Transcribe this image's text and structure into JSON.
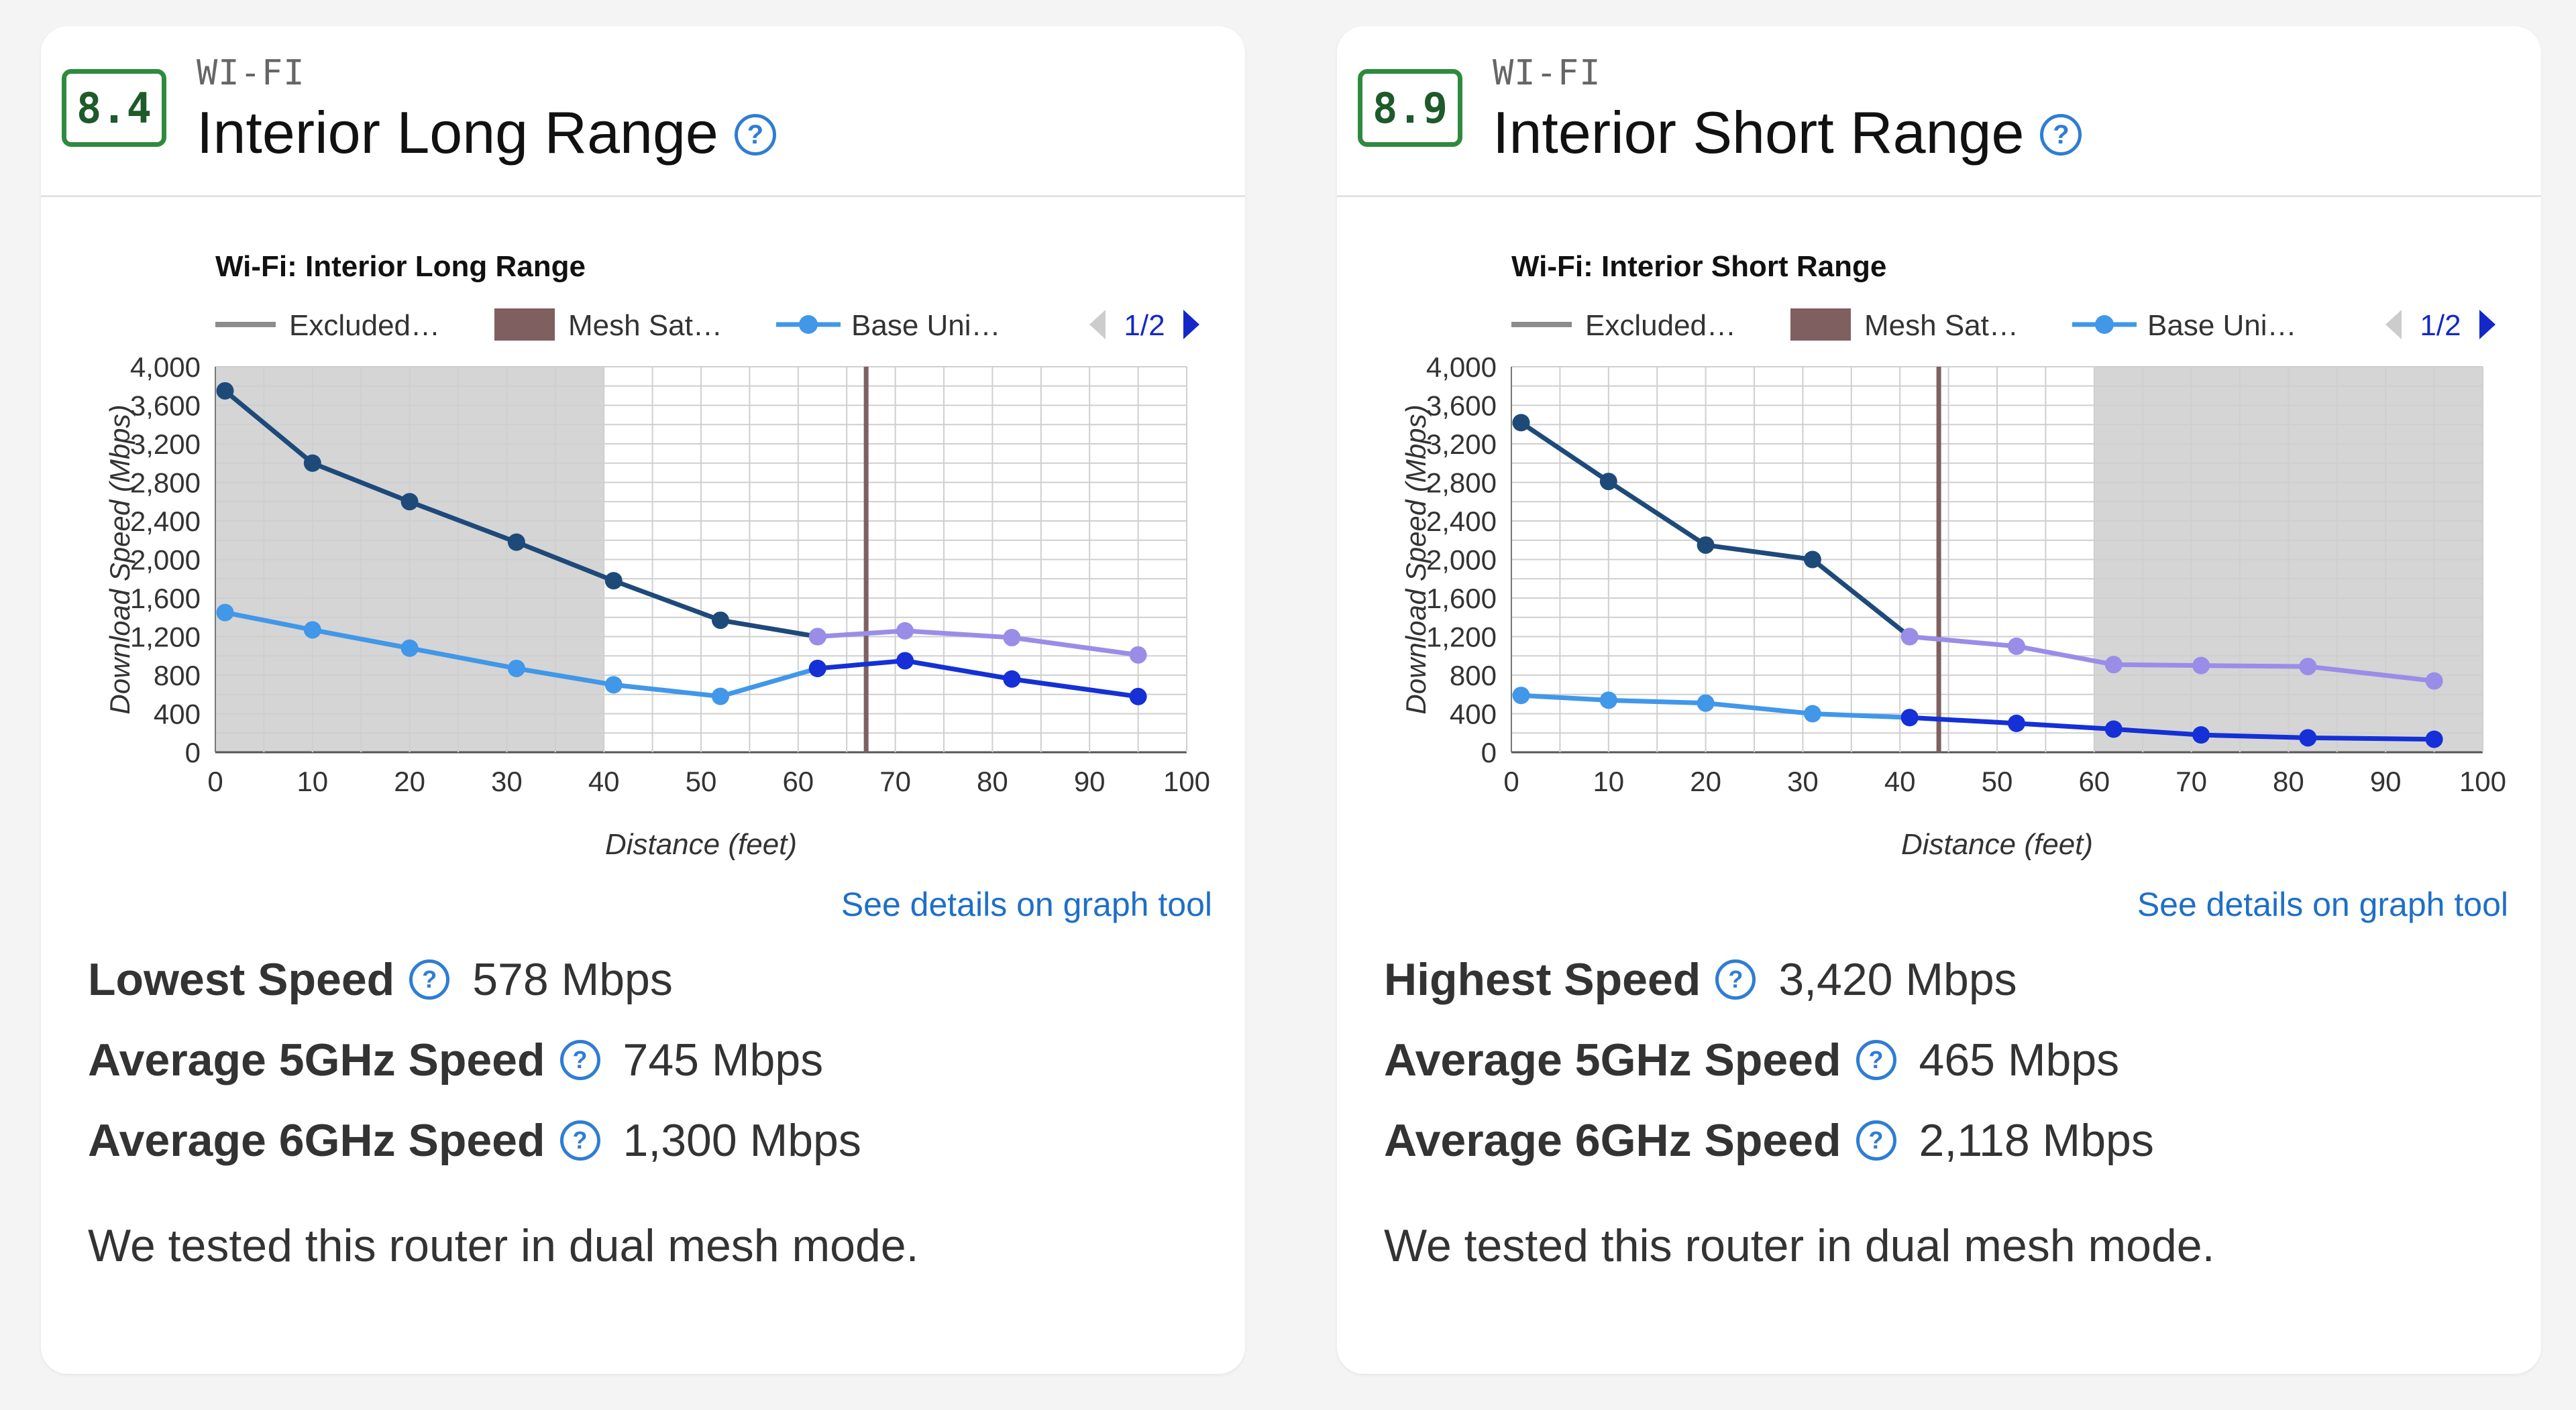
{
  "cards": [
    {
      "score": "8.4",
      "category": "WI-FI",
      "title": "Interior Long Range",
      "details_link": "See details on graph tool",
      "stats": [
        {
          "label": "Lowest Speed",
          "value": "578 Mbps"
        },
        {
          "label": "Average 5GHz Speed",
          "value": "745 Mbps"
        },
        {
          "label": "Average 6GHz Speed",
          "value": "1,300 Mbps"
        }
      ],
      "note": "We tested this router in dual mesh mode."
    },
    {
      "score": "8.9",
      "category": "WI-FI",
      "title": "Interior Short Range",
      "details_link": "See details on graph tool",
      "stats": [
        {
          "label": "Highest Speed",
          "value": "3,420 Mbps"
        },
        {
          "label": "Average 5GHz Speed",
          "value": "465 Mbps"
        },
        {
          "label": "Average 6GHz Speed",
          "value": "2,118 Mbps"
        }
      ],
      "note": "We tested this router in dual mesh mode."
    }
  ],
  "help_icon": "question-circle-icon",
  "colors": {
    "badge_border": "#2f8a3e",
    "link": "#1f6fc6",
    "excluded_region": "#d5d5d5",
    "excluded_legend": "#8c8c8c",
    "mesh_satellite": "#7f5f5f",
    "base_6ghz": "#1e4a7a",
    "base_5ghz": "#4197e8",
    "mesh_6ghz": "#9a8de8",
    "mesh_5ghz": "#1430d6",
    "pager_arrow_active": "#1428c8",
    "pager_arrow_inactive": "#cccccc"
  },
  "chart_data": [
    {
      "type": "line",
      "title": "Wi-Fi: Interior Long Range",
      "xlabel": "Distance (feet)",
      "ylabel": "Download Speed (Mbps)",
      "xlim": [
        0,
        100
      ],
      "ylim": [
        0,
        4000
      ],
      "x_ticks": [
        "0",
        "10",
        "20",
        "30",
        "40",
        "50",
        "60",
        "70",
        "80",
        "90",
        "100"
      ],
      "y_ticks": [
        "0",
        "400",
        "800",
        "1,200",
        "1,600",
        "2,000",
        "2,400",
        "2,800",
        "3,200",
        "3,600",
        "4,000"
      ],
      "grid": true,
      "legend_position": "top",
      "legend": [
        "Excluded…",
        "Mesh Sat…",
        "Base Uni…"
      ],
      "legend_page": "1/2",
      "excluded_range": [
        0,
        40
      ],
      "mesh_satellite_x": 67,
      "series": [
        {
          "line_color": "#1e4a7a",
          "x": [
            1,
            10,
            20,
            31,
            41,
            52,
            62
          ],
          "values": [
            3750,
            3000,
            2600,
            2180,
            1780,
            1370,
            1200
          ]
        },
        {
          "line_color": "#4197e8",
          "x": [
            1,
            10,
            20,
            31,
            41,
            52,
            62
          ],
          "values": [
            1450,
            1270,
            1080,
            870,
            700,
            580,
            870
          ]
        },
        {
          "line_color": "#9a8de8",
          "x": [
            62,
            71,
            82,
            95
          ],
          "values": [
            1200,
            1260,
            1190,
            1010
          ]
        },
        {
          "line_color": "#1430d6",
          "x": [
            62,
            71,
            82,
            95
          ],
          "values": [
            870,
            950,
            760,
            578
          ]
        }
      ]
    },
    {
      "type": "line",
      "title": "Wi-Fi: Interior Short Range",
      "xlabel": "Distance (feet)",
      "ylabel": "Download Speed (Mbps)",
      "xlim": [
        0,
        100
      ],
      "ylim": [
        0,
        4000
      ],
      "x_ticks": [
        "0",
        "10",
        "20",
        "30",
        "40",
        "50",
        "60",
        "70",
        "80",
        "90",
        "100"
      ],
      "y_ticks": [
        "0",
        "400",
        "800",
        "1,200",
        "1,600",
        "2,000",
        "2,400",
        "2,800",
        "3,200",
        "3,600",
        "4,000"
      ],
      "grid": true,
      "legend_position": "top",
      "legend": [
        "Excluded…",
        "Mesh Sat…",
        "Base Uni…"
      ],
      "legend_page": "1/2",
      "excluded_range": [
        60,
        100
      ],
      "mesh_satellite_x": 44,
      "series": [
        {
          "line_color": "#1e4a7a",
          "x": [
            1,
            10,
            20,
            31,
            41
          ],
          "values": [
            3420,
            2810,
            2150,
            2000,
            1200
          ]
        },
        {
          "line_color": "#4197e8",
          "x": [
            1,
            10,
            20,
            31,
            41
          ],
          "values": [
            590,
            540,
            510,
            400,
            360
          ]
        },
        {
          "line_color": "#9a8de8",
          "x": [
            41,
            52,
            62,
            71,
            82,
            95
          ],
          "values": [
            1200,
            1100,
            910,
            900,
            890,
            740
          ]
        },
        {
          "line_color": "#1430d6",
          "x": [
            41,
            52,
            62,
            71,
            82,
            95
          ],
          "values": [
            360,
            300,
            240,
            180,
            150,
            135
          ]
        }
      ]
    }
  ]
}
